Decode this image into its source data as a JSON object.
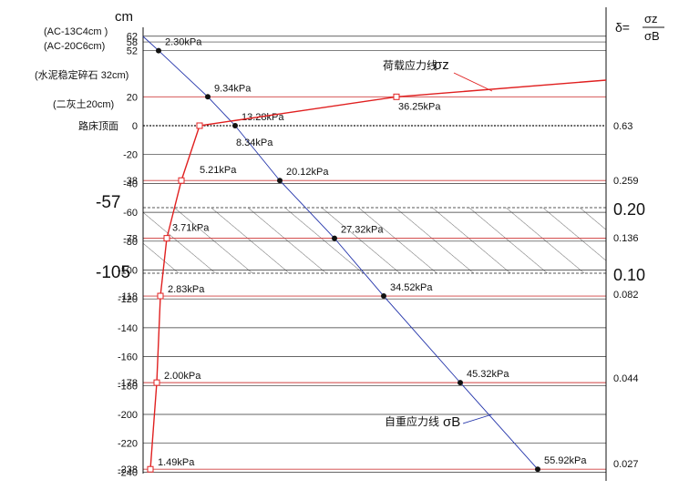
{
  "unit_label": "cm",
  "delta_formula": {
    "prefix": "δ=",
    "numerator": "σz",
    "denominator": "σB"
  },
  "layer_labels": [
    {
      "key": "ac13",
      "text": "(AC-13C4cm )"
    },
    {
      "key": "ac20",
      "text": "(AC-20C6cm)"
    },
    {
      "key": "cement",
      "text": "(水泥稳定碎石 32cm)"
    },
    {
      "key": "lime",
      "text": "(二灰土20cm)"
    },
    {
      "key": "subgrade",
      "text": "路床顶面"
    }
  ],
  "depth_ticks": [
    "62",
    "58",
    "52",
    "20",
    "0",
    "-20",
    "-38",
    "-40",
    "-60",
    "-78",
    "-80",
    "-100",
    "-118",
    "-120",
    "-140",
    "-160",
    "-178",
    "-180",
    "-200",
    "-220",
    "-238",
    "-240"
  ],
  "big_depth_labels": [
    "-57",
    "-105"
  ],
  "delta_values": [
    "0.63",
    "0.259",
    "0.20",
    "0.136",
    "0.10",
    "0.082",
    "0.044",
    "0.027"
  ],
  "load_curve": {
    "name": "荷载应力线",
    "symbol": "σz",
    "points": [
      {
        "depth": 20,
        "label": "36.25kPa"
      },
      {
        "depth": 0,
        "label": "8.34kPa"
      },
      {
        "depth": -38,
        "label": "5.21kPa"
      },
      {
        "depth": -78,
        "label": "3.71kPa"
      },
      {
        "depth": -118,
        "label": "2.83kPa"
      },
      {
        "depth": -178,
        "label": "2.00kPa"
      },
      {
        "depth": -238,
        "label": "1.49kPa"
      }
    ]
  },
  "self_weight_line": {
    "name": "自重应力线",
    "symbol": "σB",
    "points": [
      {
        "depth": 52,
        "label": "2.30kPa"
      },
      {
        "depth": 20,
        "label": "9.34kPa"
      },
      {
        "depth": 0,
        "label": "13.28kPa"
      },
      {
        "depth": -38,
        "label": "20.12kPa"
      },
      {
        "depth": -78,
        "label": "27.32kPa"
      },
      {
        "depth": -118,
        "label": "34.52kPa"
      },
      {
        "depth": -178,
        "label": "45.32kPa"
      },
      {
        "depth": -238,
        "label": "55.92kPa"
      }
    ]
  },
  "colors": {
    "load": "#e02020",
    "self": "#2233aa",
    "grid": "#333333",
    "hatch": "#444444"
  }
}
